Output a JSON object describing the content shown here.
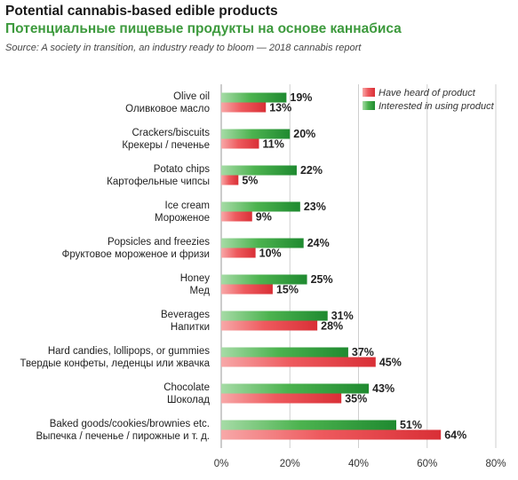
{
  "chart_data": {
    "type": "bar",
    "orientation": "horizontal",
    "title": "Potential cannabis-based edible products",
    "subtitle": "Потенциальные пищевые продукты на основе каннабиса",
    "source": "Source: A society in transition, an industry ready to bloom — 2018 cannabis report",
    "categories": [
      {
        "en": "Olive oil",
        "ru": "Оливковое масло"
      },
      {
        "en": "Crackers/biscuits",
        "ru": "Крекеры / печенье"
      },
      {
        "en": "Potato chips",
        "ru": "Картофельные чипсы"
      },
      {
        "en": "Ice cream",
        "ru": "Мороженое"
      },
      {
        "en": "Popsicles and freezies",
        "ru": "Фруктовое мороженое и фризи"
      },
      {
        "en": "Honey",
        "ru": "Мед"
      },
      {
        "en": "Beverages",
        "ru": "Напитки"
      },
      {
        "en": "Hard candies, lollipops, or gummies",
        "ru": "Твердые конфеты, леденцы или жвачка"
      },
      {
        "en": "Chocolate",
        "ru": "Шоколад"
      },
      {
        "en": "Baked goods/cookies/brownies etc.",
        "ru": "Выпечка / печенье / пирожные и т. д."
      }
    ],
    "series": [
      {
        "name": "Interested in using product",
        "color": "#2e9e3e",
        "values": [
          19,
          20,
          22,
          23,
          24,
          25,
          31,
          37,
          43,
          51
        ]
      },
      {
        "name": "Have heard of product",
        "color": "#e8454a",
        "values": [
          13,
          11,
          5,
          9,
          10,
          15,
          28,
          45,
          35,
          64
        ]
      }
    ],
    "value_suffix": "%",
    "xlim": [
      0,
      80
    ],
    "xticks": [
      "0%",
      "20%",
      "40%",
      "60%",
      "80%"
    ],
    "grid": true,
    "legend_position": "top-right",
    "legend_order": [
      "Have heard of product",
      "Interested in using product"
    ]
  }
}
